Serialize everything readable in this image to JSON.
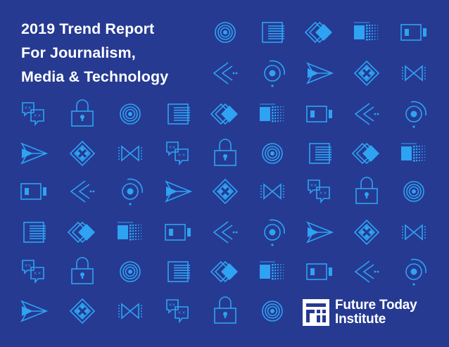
{
  "cover": {
    "title_lines": [
      "2019 Trend Report",
      "For Journalism,",
      "Media & Technology"
    ],
    "background_color": "#263a92",
    "icon_color": "#2ea3f2",
    "logo": {
      "name_line1": "Future Today",
      "name_line2": "Institute",
      "mark_icon": "fti-logo-icon"
    },
    "icon_rows": [
      [
        "target-icon",
        "document-lines-icon",
        "layered-diamond-icon",
        "pixel-grid-icon",
        "battery-icon"
      ],
      [
        "rewind-arrows-icon",
        "radar-dot-icon",
        "paper-plane-icon",
        "diamond-grid-icon",
        "bowtie-icon"
      ],
      [
        "chat-bubbles-icon",
        "padlock-icon",
        "target-icon",
        "document-lines-icon",
        "layered-diamond-icon",
        "pixel-grid-icon",
        "battery-icon",
        "rewind-arrows-icon",
        "radar-dot-icon"
      ],
      [
        "paper-plane-icon",
        "diamond-grid-icon",
        "bowtie-icon",
        "chat-bubbles-icon",
        "padlock-icon",
        "target-icon",
        "document-lines-icon",
        "layered-diamond-icon",
        "pixel-grid-icon"
      ],
      [
        "battery-icon",
        "rewind-arrows-icon",
        "radar-dot-icon",
        "paper-plane-icon",
        "diamond-grid-icon",
        "bowtie-icon",
        "chat-bubbles-icon",
        "padlock-icon",
        "target-icon"
      ],
      [
        "document-lines-icon",
        "layered-diamond-icon",
        "pixel-grid-icon",
        "battery-icon",
        "rewind-arrows-icon",
        "radar-dot-icon",
        "paper-plane-icon",
        "diamond-grid-icon",
        "bowtie-icon"
      ],
      [
        "chat-bubbles-icon",
        "padlock-icon",
        "target-icon",
        "document-lines-icon",
        "layered-diamond-icon",
        "pixel-grid-icon",
        "battery-icon",
        "rewind-arrows-icon",
        "radar-dot-icon"
      ],
      [
        "paper-plane-icon",
        "diamond-grid-icon",
        "bowtie-icon",
        "chat-bubbles-icon",
        "padlock-icon",
        "target-icon"
      ]
    ]
  }
}
